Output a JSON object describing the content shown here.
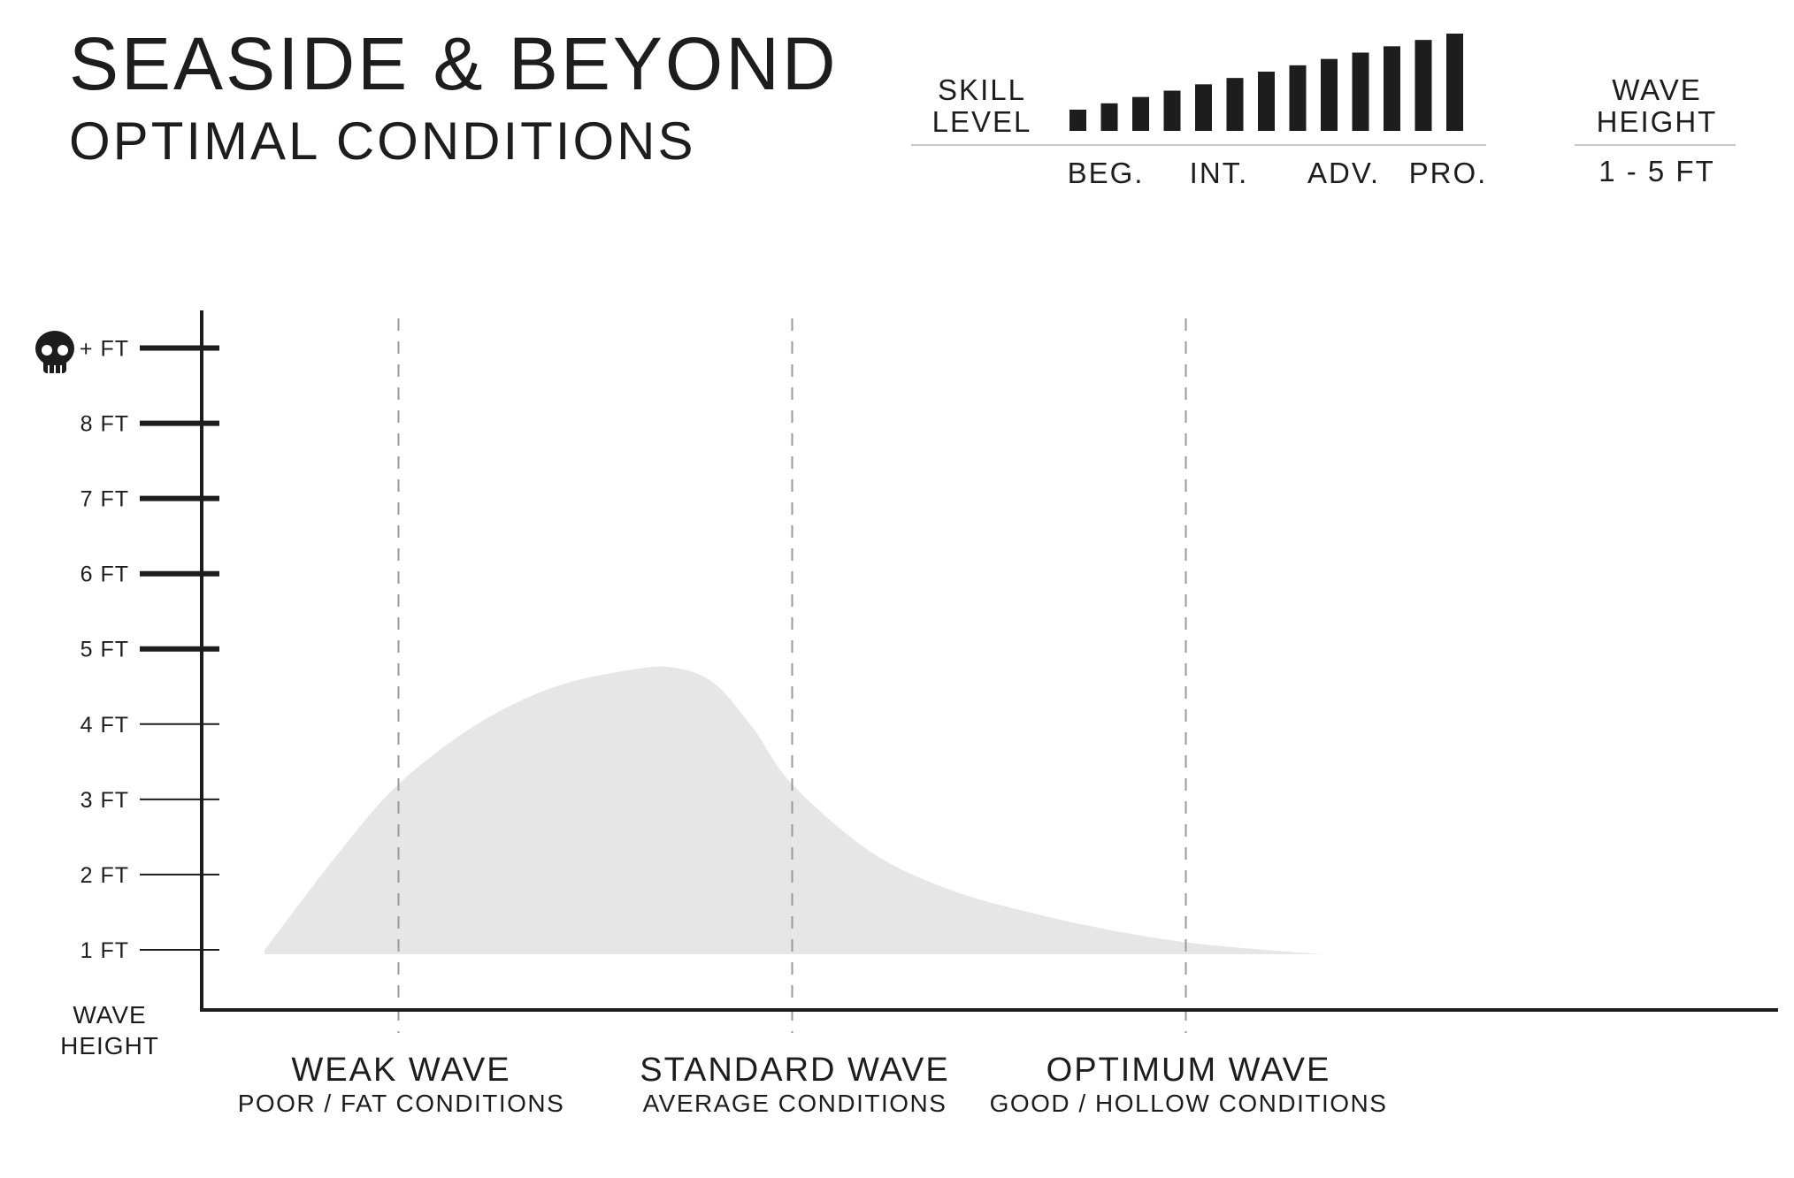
{
  "header": {
    "title": "SEASIDE & BEYOND",
    "subtitle": "OPTIMAL CONDITIONS"
  },
  "skill": {
    "label_line1": "SKILL",
    "label_line2": "LEVEL",
    "bar_count": 13,
    "levels": [
      "BEG.",
      "INT.",
      "ADV.",
      "PRO."
    ]
  },
  "wave_height_box": {
    "label_line1": "WAVE",
    "label_line2": "HEIGHT",
    "value": "1 - 5 FT"
  },
  "colors": {
    "ink": "#1d1d1d",
    "area_fill": "#e6e6e6",
    "dash": "#9a9a9a"
  },
  "chart_data": {
    "type": "area",
    "y_ticks": [
      {
        "value": 1,
        "label": "1 FT"
      },
      {
        "value": 2,
        "label": "2 FT"
      },
      {
        "value": 3,
        "label": "3 FT"
      },
      {
        "value": 4,
        "label": "4 FT"
      },
      {
        "value": 5,
        "label": "5 FT"
      },
      {
        "value": 6,
        "label": "6 FT"
      },
      {
        "value": 7,
        "label": "7 FT"
      },
      {
        "value": 8,
        "label": "8 FT"
      },
      {
        "value": 9,
        "label": "+ FT",
        "icon": "skull-icon"
      }
    ],
    "ylabel_line1": "WAVE",
    "ylabel_line2": "HEIGHT",
    "ylim": [
      0.2,
      9.5
    ],
    "xlim": [
      0,
      4
    ],
    "categories": [
      {
        "x": 0.5,
        "name": "WEAK WAVE",
        "sub": "POOR / FAT CONDITIONS"
      },
      {
        "x": 1.5,
        "name": "STANDARD WAVE",
        "sub": "AVERAGE CONDITIONS"
      },
      {
        "x": 2.5,
        "name": "OPTIMUM WAVE",
        "sub": "GOOD / HOLLOW CONDITIONS"
      }
    ],
    "area_points": [
      {
        "x": 0.16,
        "y": 1.0
      },
      {
        "x": 0.35,
        "y": 2.3
      },
      {
        "x": 0.5,
        "y": 3.2
      },
      {
        "x": 0.7,
        "y": 4.0
      },
      {
        "x": 0.9,
        "y": 4.5
      },
      {
        "x": 1.1,
        "y": 4.73
      },
      {
        "x": 1.2,
        "y": 4.75
      },
      {
        "x": 1.3,
        "y": 4.55
      },
      {
        "x": 1.4,
        "y": 3.95
      },
      {
        "x": 1.5,
        "y": 3.2
      },
      {
        "x": 1.7,
        "y": 2.3
      },
      {
        "x": 1.9,
        "y": 1.8
      },
      {
        "x": 2.1,
        "y": 1.5
      },
      {
        "x": 2.3,
        "y": 1.27
      },
      {
        "x": 2.5,
        "y": 1.1
      },
      {
        "x": 2.7,
        "y": 1.0
      },
      {
        "x": 2.85,
        "y": 0.94
      }
    ],
    "grid": false,
    "legend": "none"
  }
}
